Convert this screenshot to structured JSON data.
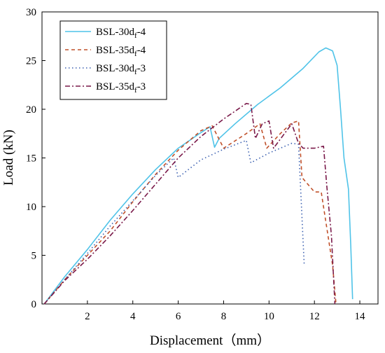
{
  "chart_data": {
    "type": "line",
    "xlabel": "Displacement（mm）",
    "ylabel": "Load (kN)",
    "xlim": [
      0,
      14.8
    ],
    "ylim": [
      0,
      30
    ],
    "xticks": [
      "2",
      "4",
      "6",
      "8",
      "10",
      "12",
      "14"
    ],
    "yticks": [
      "0",
      "5",
      "10",
      "15",
      "20",
      "25",
      "30"
    ],
    "legend_position": "top-left",
    "series": [
      {
        "name": "BSL-30d",
        "name_sub": "f",
        "name_suffix": "-4",
        "color": "#4fc3e8",
        "dash": "solid",
        "points": [
          [
            0.1,
            0
          ],
          [
            1,
            2.8
          ],
          [
            2,
            5.6
          ],
          [
            3,
            8.6
          ],
          [
            4,
            11.3
          ],
          [
            5,
            13.8
          ],
          [
            6,
            16.0
          ],
          [
            7,
            17.6
          ],
          [
            7.4,
            18.2
          ],
          [
            7.6,
            16.1
          ],
          [
            7.8,
            17.0
          ],
          [
            8.5,
            18.5
          ],
          [
            9.5,
            20.5
          ],
          [
            10.5,
            22.2
          ],
          [
            11.5,
            24.2
          ],
          [
            12.2,
            25.9
          ],
          [
            12.5,
            26.3
          ],
          [
            12.8,
            26.0
          ],
          [
            13.0,
            24.5
          ],
          [
            13.15,
            20.0
          ],
          [
            13.3,
            15.0
          ],
          [
            13.5,
            11.8
          ],
          [
            13.6,
            6.0
          ],
          [
            13.68,
            0.5
          ]
        ]
      },
      {
        "name": "BSL-35d",
        "name_sub": "f",
        "name_suffix": "-4",
        "color": "#c0502a",
        "dash": "5,4",
        "points": [
          [
            0.1,
            0
          ],
          [
            1,
            2.5
          ],
          [
            2,
            5.0
          ],
          [
            3,
            7.5
          ],
          [
            4,
            10.5
          ],
          [
            5,
            13.3
          ],
          [
            6,
            15.8
          ],
          [
            7,
            17.8
          ],
          [
            7.5,
            18.3
          ],
          [
            8.0,
            16.0
          ],
          [
            9,
            17.5
          ],
          [
            9.6,
            18.5
          ],
          [
            9.9,
            16.0
          ],
          [
            10.5,
            17.5
          ],
          [
            11.0,
            18.6
          ],
          [
            11.3,
            18.8
          ],
          [
            11.45,
            13.0
          ],
          [
            12.0,
            11.5
          ],
          [
            12.3,
            11.5
          ],
          [
            12.6,
            7.0
          ],
          [
            12.8,
            4.0
          ],
          [
            12.95,
            0
          ]
        ]
      },
      {
        "name": "BSL-30d",
        "name_sub": "f",
        "name_suffix": "-3",
        "color": "#3a5fb0",
        "dash": "1.5,3.5",
        "points": [
          [
            0.1,
            0
          ],
          [
            1,
            2.5
          ],
          [
            2,
            5.2
          ],
          [
            3,
            8.0
          ],
          [
            4,
            10.6
          ],
          [
            5,
            13.2
          ],
          [
            5.8,
            15.0
          ],
          [
            6,
            13.0
          ],
          [
            7,
            14.8
          ],
          [
            8,
            15.9
          ],
          [
            9,
            16.8
          ],
          [
            9.2,
            14.5
          ],
          [
            10,
            15.5
          ],
          [
            11,
            16.5
          ],
          [
            11.3,
            16.4
          ],
          [
            11.55,
            4.0
          ]
        ]
      },
      {
        "name": "BSL-35d",
        "name_sub": "f",
        "name_suffix": "-3",
        "color": "#7a1a4a",
        "dash": "7,3,2,3",
        "points": [
          [
            0.1,
            0
          ],
          [
            1,
            2.4
          ],
          [
            2,
            4.6
          ],
          [
            3,
            7.0
          ],
          [
            4,
            9.6
          ],
          [
            5,
            12.3
          ],
          [
            6,
            15.0
          ],
          [
            7,
            17.2
          ],
          [
            8,
            19.0
          ],
          [
            9,
            20.6
          ],
          [
            9.2,
            20.5
          ],
          [
            9.4,
            17.0
          ],
          [
            9.7,
            18.5
          ],
          [
            10.0,
            18.8
          ],
          [
            10.2,
            16.0
          ],
          [
            11.0,
            18.5
          ],
          [
            11.3,
            16.5
          ],
          [
            11.5,
            16.0
          ],
          [
            12.0,
            16.0
          ],
          [
            12.4,
            16.2
          ],
          [
            12.55,
            12.0
          ],
          [
            12.75,
            7.0
          ],
          [
            12.9,
            0
          ]
        ]
      }
    ]
  }
}
